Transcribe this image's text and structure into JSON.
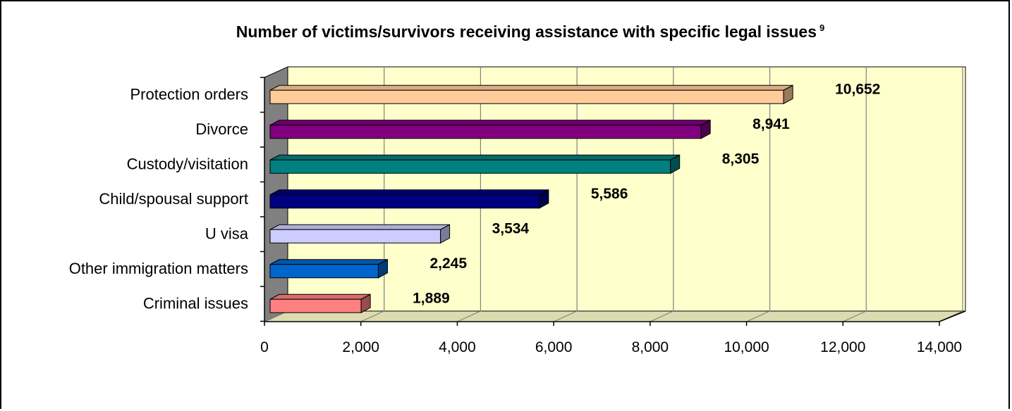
{
  "chart_data": {
    "type": "bar",
    "orientation": "horizontal",
    "title": "Number of victims/survivors receiving assistance with specific legal issues",
    "title_footnote": "9",
    "categories": [
      "Protection orders",
      "Divorce",
      "Custody/visitation",
      "Child/spousal support",
      "U visa",
      "Other immigration matters",
      "Criminal issues"
    ],
    "values": [
      10652,
      8941,
      8305,
      5586,
      3534,
      2245,
      1889
    ],
    "value_labels": [
      "10,652",
      "8,941",
      "8,305",
      "5,586",
      "3,534",
      "2,245",
      "1,889"
    ],
    "xlim": [
      0,
      14000
    ],
    "x_ticks": [
      0,
      2000,
      4000,
      6000,
      8000,
      10000,
      12000,
      14000
    ],
    "x_tick_labels": [
      "0",
      "2,000",
      "4,000",
      "6,000",
      "8,000",
      "10,000",
      "12,000",
      "14,000"
    ],
    "grid": true,
    "legend": "none",
    "background_color": "#ffffcc",
    "bar_colors": [
      "#ffcc99",
      "#800080",
      "#008080",
      "#000080",
      "#ccccff",
      "#0066cc",
      "#ff8080"
    ]
  }
}
